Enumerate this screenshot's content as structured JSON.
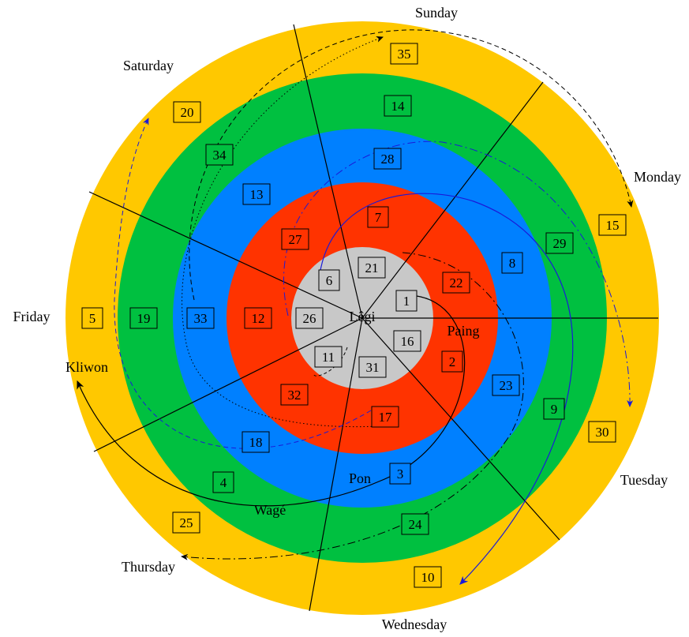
{
  "center_label": "Lêgi",
  "weekdays": [
    "Sunday",
    "Monday",
    "Tuesday",
    "Wednesday",
    "Thursday",
    "Friday",
    "Saturday"
  ],
  "pasaran": [
    "Paing",
    "Pon",
    "Wagé",
    "Kliwon"
  ],
  "rings": [
    {
      "name": "inner",
      "color": "#c8c8c8",
      "numbers": [
        "21",
        "1",
        "16",
        "31",
        "11",
        "26",
        "6"
      ]
    },
    {
      "name": "red",
      "color": "#ff3300",
      "numbers": [
        "7",
        "22",
        "2",
        "17",
        "32",
        "12",
        "27"
      ]
    },
    {
      "name": "blue",
      "color": "#0080ff",
      "numbers": [
        "28",
        "8",
        "23",
        "3",
        "18",
        "33",
        "13"
      ]
    },
    {
      "name": "green",
      "color": "#00c040",
      "numbers": [
        "14",
        "29",
        "9",
        "24",
        "4",
        "19",
        "34"
      ]
    },
    {
      "name": "yellow",
      "color": "#ffc800",
      "numbers": [
        "35",
        "15",
        "30",
        "10",
        "25",
        "5",
        "20"
      ]
    }
  ]
}
